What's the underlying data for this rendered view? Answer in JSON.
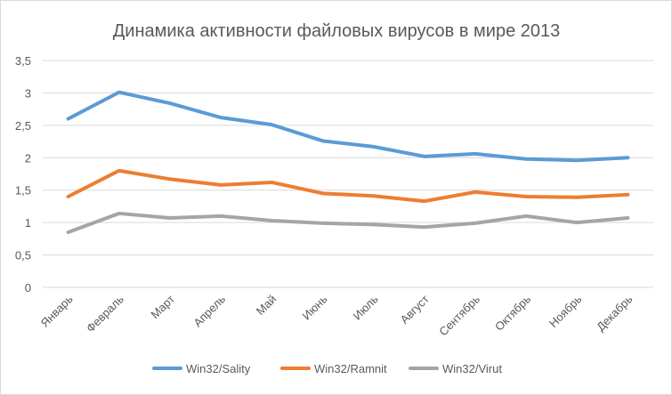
{
  "chart_data": {
    "type": "line",
    "title": "Динамика активности файловых вирусов в мире 2013",
    "xlabel": "",
    "ylabel": "",
    "ylim": [
      0,
      3.5
    ],
    "yticks": [
      "0",
      "0,5",
      "1",
      "1,5",
      "2",
      "2,5",
      "3",
      "3,5"
    ],
    "grid": true,
    "legend_position": "bottom",
    "categories": [
      "Январь",
      "Февраль",
      "Март",
      "Апрель",
      "Май",
      "Июнь",
      "Июль",
      "Август",
      "Сентябрь",
      "Октябрь",
      "Ноябрь",
      "Декабрь"
    ],
    "series": [
      {
        "name": "Win32/Sality",
        "color": "#5b9bd5",
        "values": [
          2.6,
          3.01,
          2.84,
          2.62,
          2.51,
          2.26,
          2.17,
          2.02,
          2.06,
          1.98,
          1.96,
          2.0
        ]
      },
      {
        "name": "Win32/Ramnit",
        "color": "#ed7d31",
        "values": [
          1.4,
          1.8,
          1.67,
          1.58,
          1.62,
          1.45,
          1.41,
          1.33,
          1.47,
          1.4,
          1.39,
          1.43
        ]
      },
      {
        "name": "Win32/Virut",
        "color": "#a5a5a5",
        "values": [
          0.85,
          1.14,
          1.07,
          1.1,
          1.03,
          0.99,
          0.97,
          0.93,
          0.99,
          1.1,
          1.0,
          1.07
        ]
      }
    ]
  }
}
